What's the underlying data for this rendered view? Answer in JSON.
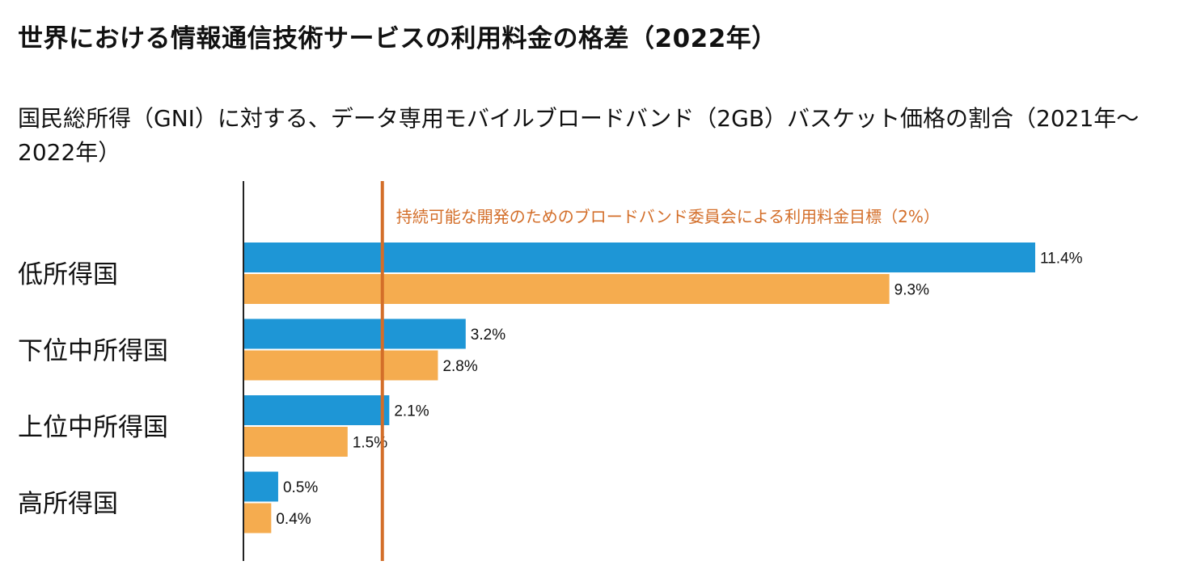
{
  "title": "世界における情報通信技術サービスの利用料金の格差（2022年）",
  "subtitle": "国民総所得（GNI）に対する、データ専用モバイルブロードバンド（2GB）バスケット価格の割合（2021年〜2022年）",
  "chart_data": {
    "type": "bar",
    "orientation": "horizontal",
    "categories": [
      "低所得国",
      "下位中所得国",
      "上位中所得国",
      "高所得国"
    ],
    "series": [
      {
        "values": [
          11.4,
          3.2,
          2.1,
          0.5
        ],
        "color": "#1e96d6"
      },
      {
        "values": [
          9.3,
          2.8,
          1.5,
          0.4
        ],
        "color": "#f5ac4f"
      }
    ],
    "value_labels": [
      [
        "11.4%",
        "3.2%",
        "2.1%",
        "0.5%"
      ],
      [
        "9.3%",
        "2.8%",
        "1.5%",
        "0.4%"
      ]
    ],
    "reference_line": {
      "value": 2,
      "label": "持続可能な開発のためのブロードバンド委員会による利用料金目標（2%）",
      "color": "#d36e29"
    },
    "xlim": [
      0,
      11.4
    ],
    "grid": false,
    "legend": "none"
  }
}
